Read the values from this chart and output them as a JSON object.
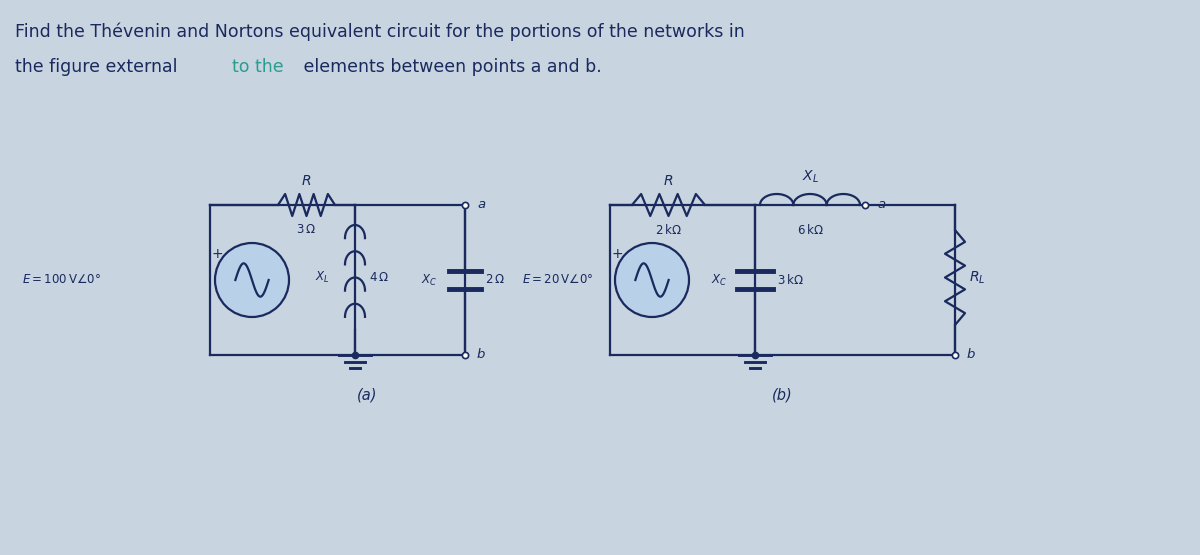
{
  "title_line1": "Find the Thévenin and Nortons equivalent circuit for the portions of the networks in",
  "title_line2_p1": "the figure external ",
  "title_line2_highlight": "to the",
  "title_line2_p2": " elements between points a and b.",
  "title_color": "#1a2a5e",
  "highlight_color": "#2a9d8f",
  "bg_color": "#c8d4df",
  "circuit_color": "#1a2a5e",
  "circuit_lw": 1.6,
  "label_a": "(a)",
  "label_b": "(b)"
}
